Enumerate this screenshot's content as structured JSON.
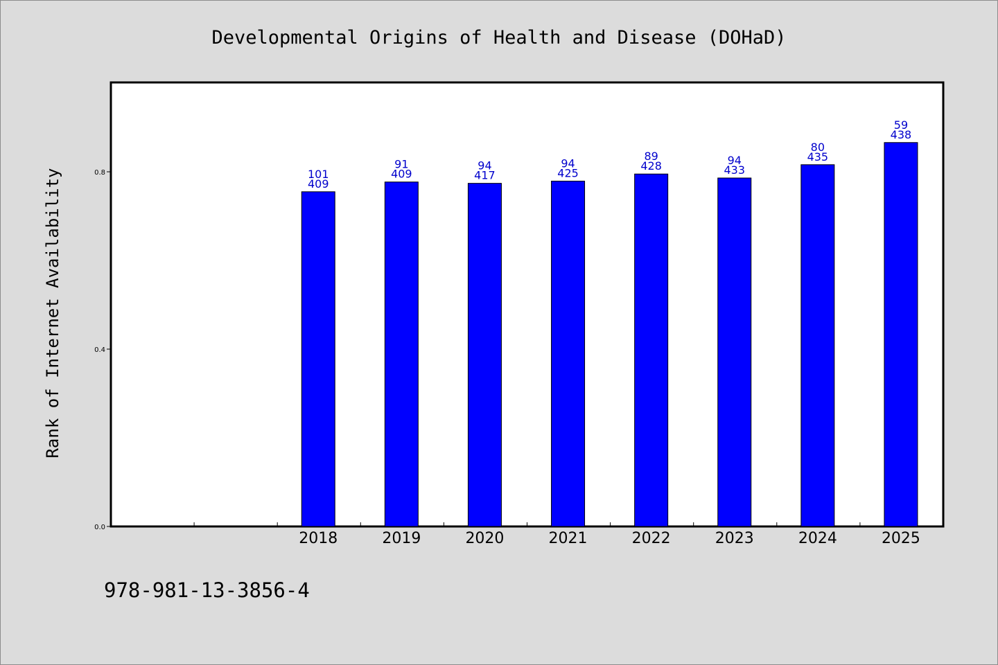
{
  "chart_data": {
    "type": "bar",
    "title": "Developmental Origins of Health and Disease (DOHaD)",
    "xlabel": "",
    "ylabel": "Rank of Internet Availability",
    "categories": [
      "2018",
      "2019",
      "2020",
      "2021",
      "2022",
      "2023",
      "2024",
      "2025"
    ],
    "values": [
      0.755,
      0.777,
      0.774,
      0.779,
      0.795,
      0.786,
      0.816,
      0.866
    ],
    "label_top": [
      "101",
      "91",
      "94",
      "94",
      "89",
      "94",
      "80",
      "59"
    ],
    "label_bottom": [
      "409",
      "409",
      "417",
      "425",
      "428",
      "433",
      "435",
      "438"
    ],
    "ylim": [
      0,
      1.0
    ],
    "yticks": [
      "0.0",
      "0.4",
      "0.8"
    ],
    "bar_color": "#0000ff",
    "label_color": "#0000cc",
    "grid": false,
    "legend": "none"
  },
  "footer": {
    "isbn": "978-981-13-3856-4"
  }
}
